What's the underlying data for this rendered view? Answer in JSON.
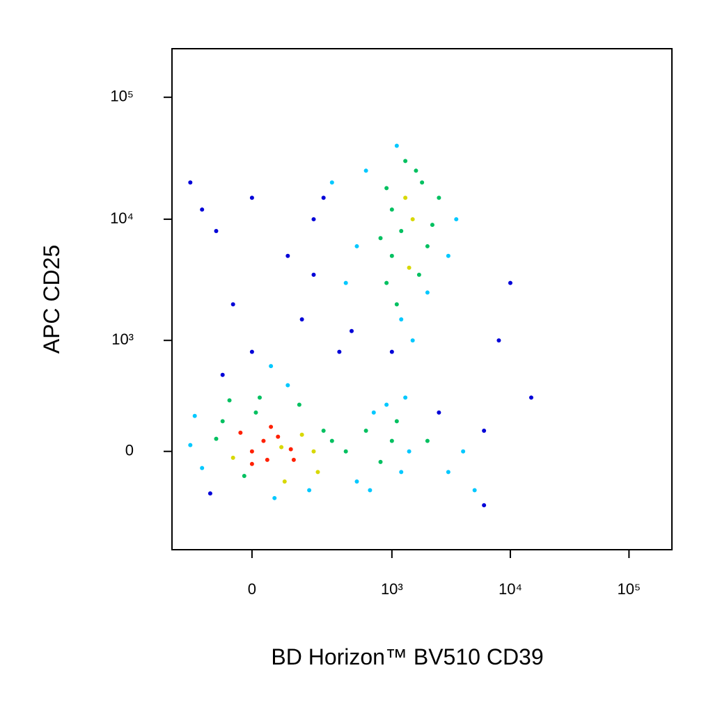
{
  "chart_data": {
    "type": "scatter",
    "scale": "biexponential",
    "x_label": "BD Horizon™ BV510 CD39",
    "y_label": "APC CD25",
    "xlim": [
      -300,
      230000
    ],
    "ylim": [
      -780,
      250000
    ],
    "xticks": [
      0,
      {
        "value": 1000,
        "label": "10³"
      },
      {
        "value": 10000,
        "label": "10⁴"
      },
      {
        "value": 100000,
        "label": "10⁵"
      }
    ],
    "yticks": [
      0,
      {
        "value": 1000,
        "label": "10³"
      },
      {
        "value": 10000,
        "label": "10⁴"
      },
      {
        "value": 100000,
        "label": "10⁵"
      }
    ],
    "colormap": [
      "#0000d8",
      "#00c8ff",
      "#00c060",
      "#d8d800",
      "#ff2000"
    ],
    "x": [
      0,
      30,
      -50,
      80,
      -100,
      120,
      50,
      -20,
      150,
      -150,
      200,
      10,
      -80,
      90,
      250,
      -200,
      60,
      180,
      -120,
      300,
      20,
      -60,
      140,
      220,
      -180,
      40,
      70,
      -30,
      110,
      0,
      400,
      600,
      800,
      1000,
      1200,
      700,
      500,
      900,
      1400,
      1100,
      650,
      1300,
      2000,
      3000,
      2500,
      4000,
      5000,
      6000,
      1000,
      1200,
      1500,
      900,
      1300,
      1800,
      2000,
      1100,
      1600,
      1400,
      1000,
      2200,
      800,
      1700,
      1200,
      2500,
      3000,
      1000,
      1500,
      2000,
      1300,
      900,
      3500,
      1100,
      -50,
      100,
      200,
      300,
      0,
      150,
      400,
      -100,
      250,
      500,
      50,
      350,
      -150,
      600,
      100,
      -80,
      450,
      200,
      -200,
      0,
      10000,
      15000,
      8000,
      6000
    ],
    "series": [
      {
        "values": [
          0,
          50,
          -30,
          20,
          60,
          -40,
          120,
          -120,
          80,
          -80,
          0,
          200,
          150,
          -150,
          100,
          30,
          -250,
          -200,
          -220,
          50,
          300,
          280,
          250,
          -100,
          180,
          -40,
          70,
          90,
          10,
          -60,
          0,
          100,
          -50,
          50,
          -100,
          200,
          -150,
          250,
          0,
          150,
          -200,
          300,
          50,
          -100,
          200,
          0,
          -200,
          100,
          5000,
          8000,
          10000,
          3000,
          15000,
          20000,
          6000,
          2000,
          25000,
          4000,
          12000,
          9000,
          7000,
          3500,
          1500,
          15000,
          5000,
          800,
          1000,
          2500,
          30000,
          18000,
          10000,
          40000,
          2000,
          5000,
          10000,
          20000,
          800,
          1500,
          3000,
          8000,
          15000,
          6000,
          600,
          800,
          12000,
          25000,
          400,
          500,
          1200,
          3500,
          20000,
          15000,
          3000,
          300,
          1000,
          -300
        ]
      }
    ]
  }
}
